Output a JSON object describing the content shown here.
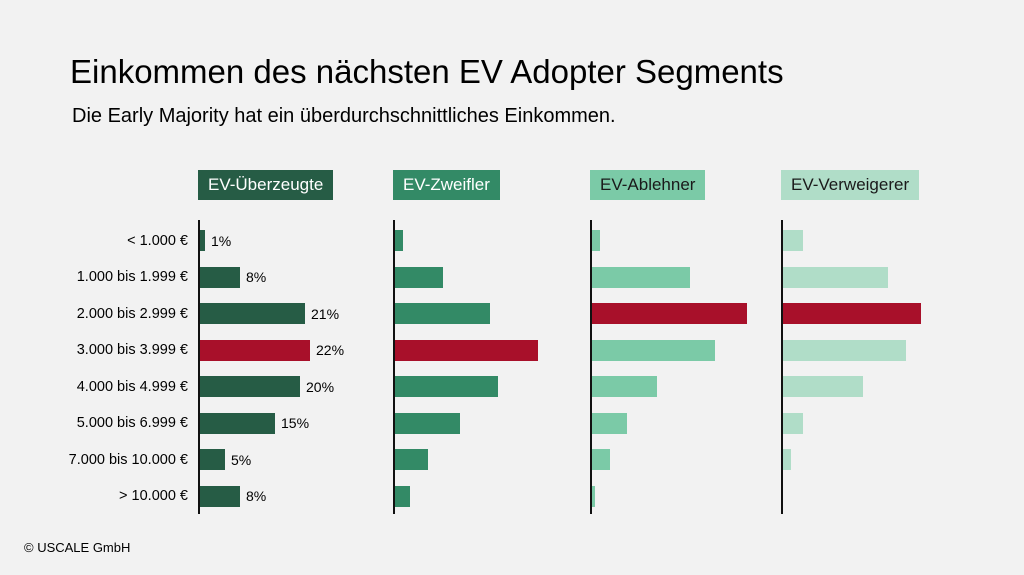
{
  "title": "Einkommen des nächsten EV Adopter Segments",
  "subtitle": "Die Early Majority hat ein überdurchschnittliches  Einkommen.",
  "footer": "© USCALE GmbH",
  "colors": {
    "background": "#f2f2f2",
    "highlight": "#a8102a"
  },
  "chart_data": {
    "type": "bar",
    "orientation": "horizontal",
    "title": "Einkommen des nächsten EV Adopter Segments",
    "subtitle": "Die Early Majority hat ein überdurchschnittliches  Einkommen.",
    "unit": "%",
    "categories": [
      "< 1.000 €",
      "1.000 bis 1.999 €",
      "2.000 bis 2.999 €",
      "3.000 bis 3.999 €",
      "4.000 bis 4.999 €",
      "5.000 bis 6.999 €",
      "7.000 bis 10.000 €",
      "> 10.000 €"
    ],
    "series": [
      {
        "name": "EV-Überzeugte",
        "values": [
          1,
          8,
          21,
          22,
          20,
          15,
          5,
          8
        ],
        "value_labels": [
          "1%",
          "8%",
          "21%",
          "22%",
          "20%",
          "15%",
          "5%",
          "8%"
        ],
        "highlight_index": 3,
        "header_color": "#265c45",
        "header_text_color": "#ffffff",
        "bar_color": "#265c45"
      },
      {
        "name": "EV-Zweifler",
        "values": [
          1.5,
          9.5,
          19,
          28.5,
          20.5,
          13,
          6.5,
          3
        ],
        "highlight_index": 3,
        "header_color": "#338a66",
        "header_text_color": "#ffffff",
        "bar_color": "#338a66"
      },
      {
        "name": "EV-Ablehner",
        "values": [
          1.5,
          19.5,
          31,
          24.5,
          13,
          7,
          3.5,
          0.5
        ],
        "highlight_index": 2,
        "header_color": "#7bcaa7",
        "header_text_color": "#1a1a1a",
        "bar_color": "#7bcaa7"
      },
      {
        "name": "EV-Verweigerer",
        "values": [
          4,
          21,
          27.5,
          24.5,
          16,
          4,
          1.5,
          0
        ],
        "highlight_index": 2,
        "header_color": "#b0ddc8",
        "header_text_color": "#1a1a1a",
        "bar_color": "#b0ddc8"
      }
    ]
  }
}
